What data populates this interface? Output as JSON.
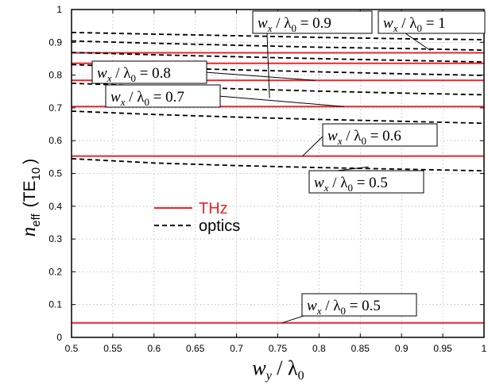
{
  "chart_data": {
    "type": "line",
    "xlabel": {
      "main": "w",
      "sub": "y",
      "rest": " / λ",
      "sub2": "0"
    },
    "ylabel": {
      "n": "n",
      "nsub": "eff",
      "mode": "(TE",
      "modesub": "10",
      "close": ")"
    },
    "xlim": [
      0.5,
      1
    ],
    "ylim": [
      0,
      1
    ],
    "x_ticks": [
      0.5,
      0.55,
      0.6,
      0.65,
      0.7,
      0.75,
      0.8,
      0.85,
      0.9,
      0.95,
      1
    ],
    "x_tick_labels": [
      "0.5",
      "0.55",
      "0.6",
      "0.65",
      "0.7",
      "0.75",
      "0.8",
      "0.85",
      "0.9",
      "0.95",
      "1"
    ],
    "y_ticks": [
      0,
      0.1,
      0.2,
      0.3,
      0.4,
      0.5,
      0.6,
      0.7,
      0.8,
      0.9,
      1
    ],
    "y_tick_labels": [
      "0",
      "0.1",
      "0.2",
      "0.3",
      "0.4",
      "0.5",
      "0.6",
      "0.7",
      "0.8",
      "0.9",
      "1"
    ],
    "grid": true,
    "legend": {
      "placement": "center-left",
      "entries": [
        {
          "name": "THz",
          "style": "solid",
          "color": "#e8262c"
        },
        {
          "name": "optics",
          "style": "dashed",
          "color": "#000000"
        }
      ]
    },
    "series": [
      {
        "group": "THz",
        "wx": "0.5",
        "x": [
          0.5,
          1
        ],
        "y": [
          0.044,
          0.044
        ]
      },
      {
        "group": "THz",
        "wx": "0.6",
        "x": [
          0.5,
          1
        ],
        "y": [
          0.553,
          0.553
        ]
      },
      {
        "group": "THz",
        "wx": "0.7",
        "x": [
          0.5,
          1
        ],
        "y": [
          0.704,
          0.704
        ]
      },
      {
        "group": "THz",
        "wx": "0.8",
        "x": [
          0.5,
          1
        ],
        "y": [
          0.784,
          0.784
        ]
      },
      {
        "group": "THz",
        "wx": "0.9",
        "x": [
          0.5,
          1
        ],
        "y": [
          0.836,
          0.836
        ]
      },
      {
        "group": "THz",
        "wx": "1",
        "x": [
          0.5,
          1
        ],
        "y": [
          0.868,
          0.868
        ]
      },
      {
        "group": "optics",
        "wx": "0.5",
        "x": [
          0.5,
          0.6,
          0.7,
          0.8,
          0.9,
          1
        ],
        "y": [
          0.545,
          0.532,
          0.524,
          0.518,
          0.513,
          0.508
        ]
      },
      {
        "group": "optics",
        "wx": "0.6",
        "x": [
          0.5,
          0.6,
          0.7,
          0.8,
          0.9,
          1
        ],
        "y": [
          0.69,
          0.68,
          0.672,
          0.665,
          0.659,
          0.653
        ]
      },
      {
        "group": "optics",
        "wx": "0.7",
        "x": [
          0.5,
          0.6,
          0.7,
          0.8,
          0.9,
          1
        ],
        "y": [
          0.775,
          0.766,
          0.758,
          0.751,
          0.745,
          0.74
        ]
      },
      {
        "group": "optics",
        "wx": "0.8",
        "x": [
          0.5,
          0.6,
          0.7,
          0.8,
          0.9,
          1
        ],
        "y": [
          0.832,
          0.823,
          0.816,
          0.81,
          0.804,
          0.799
        ]
      },
      {
        "group": "optics",
        "wx": "0.9",
        "x": [
          0.5,
          0.6,
          0.7,
          0.8,
          0.9,
          1
        ],
        "y": [
          0.869,
          0.862,
          0.856,
          0.85,
          0.845,
          0.84
        ]
      },
      {
        "group": "optics",
        "wx": "1",
        "x": [
          0.5,
          0.6,
          0.7,
          0.8,
          0.9,
          1
        ],
        "y": [
          0.904,
          0.897,
          0.891,
          0.885,
          0.881,
          0.876
        ]
      },
      {
        "group": "optics",
        "wx": "1",
        "x": [
          0.5,
          0.6,
          0.7,
          0.8,
          0.9,
          1
        ],
        "y": [
          0.93,
          0.925,
          0.92,
          0.915,
          0.911,
          0.908
        ]
      }
    ],
    "annotations": [
      {
        "value": "= 0.9",
        "point_x": 0.74,
        "point_y": 0.73
      },
      {
        "value": "= 1",
        "point_x": 0.935,
        "point_y": 0.875
      },
      {
        "value": "= 0.8",
        "point_x": 0.795,
        "point_y": 0.784
      },
      {
        "value": "= 0.7",
        "point_x": 0.83,
        "point_y": 0.704
      },
      {
        "value": "= 0.6",
        "point_x": 0.78,
        "point_y": 0.553
      },
      {
        "value": "= 0.5",
        "point_x": 0.86,
        "point_y": 0.52
      },
      {
        "value": "= 0.5",
        "point_x": 0.755,
        "point_y": 0.044
      }
    ],
    "annotation_symbol": {
      "w": "w",
      "wsub": "x",
      "lam": " / λ",
      "lamsub": "0"
    }
  }
}
